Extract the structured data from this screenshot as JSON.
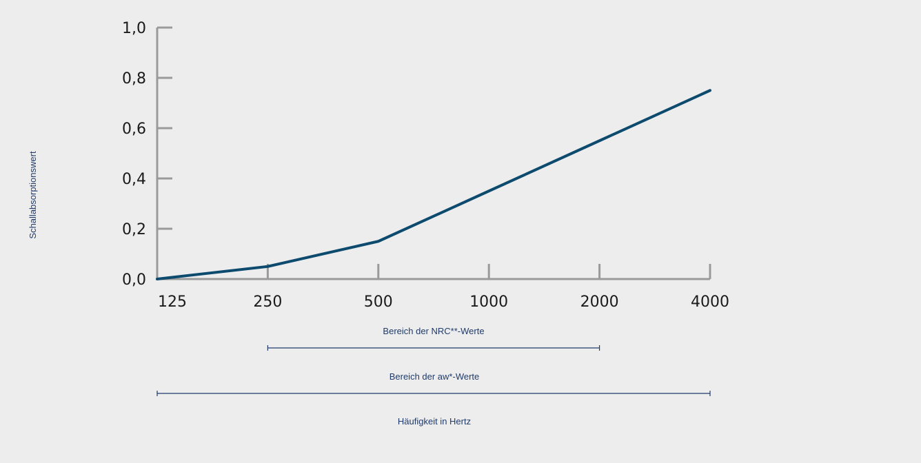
{
  "chart_data": {
    "type": "line",
    "x": [
      "125",
      "250",
      "500",
      "1000",
      "2000",
      "4000"
    ],
    "series": [
      {
        "values": [
          0.0,
          0.05,
          0.15,
          0.35,
          0.55,
          0.75
        ]
      }
    ],
    "ylabel": "Schallabsorptionswert",
    "xlabel": "Häufigkeit in Hertz",
    "ylim": [
      0,
      1.0
    ],
    "yticks": [
      "0,0",
      "0,2",
      "0,4",
      "0,6",
      "0,8",
      "1,0"
    ],
    "grid": false,
    "ranges": [
      {
        "label": "Bereich der NRC**-Werte",
        "from": "250",
        "to": "2000"
      },
      {
        "label": "Bereich der aw*-Werte",
        "from": "125",
        "to": "4000"
      }
    ]
  },
  "colors": {
    "line": "#0c4a6e",
    "axis": "#9a9a9a",
    "label": "#1f3a6b",
    "background": "#ededed"
  }
}
